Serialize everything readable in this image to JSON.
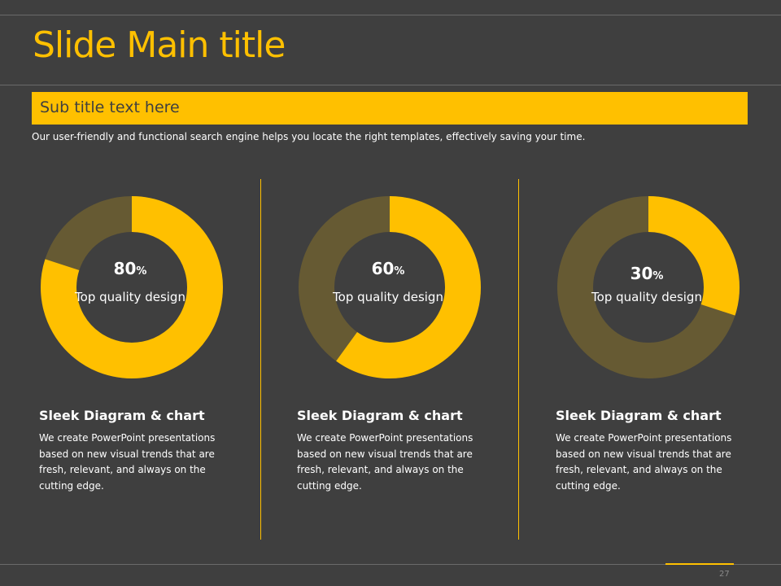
{
  "slide": {
    "title": "Slide Main title",
    "subtitle": "Sub title text here",
    "intro": "Our user-friendly and functional search engine helps you locate the right templates, effectively saving your time.",
    "page_number": "27"
  },
  "colors": {
    "background": "#3f3f3f",
    "accent": "#ffc000",
    "track": "#665a33"
  },
  "chart_data": [
    {
      "type": "pie",
      "style": "donut",
      "values": [
        80,
        20
      ],
      "center_value": "80",
      "center_unit": "%",
      "center_label": "Top quality design",
      "heading": "Sleek Diagram & chart",
      "description": "We create PowerPoint presentations based on new visual trends that are fresh, relevant, and always on the cutting edge."
    },
    {
      "type": "pie",
      "style": "donut",
      "values": [
        60,
        40
      ],
      "center_value": "60",
      "center_unit": "%",
      "center_label": "Top quality design",
      "heading": "Sleek Diagram & chart",
      "description": "We create PowerPoint presentations based on new visual trends that are fresh, relevant, and always on the cutting edge."
    },
    {
      "type": "pie",
      "style": "donut",
      "values": [
        30,
        70
      ],
      "center_value": "30",
      "center_unit": "%",
      "center_label": "Top quality design",
      "heading": "Sleek Diagram & chart",
      "description": "We create PowerPoint presentations based on new visual trends that are fresh, relevant, and always on the cutting edge."
    }
  ]
}
